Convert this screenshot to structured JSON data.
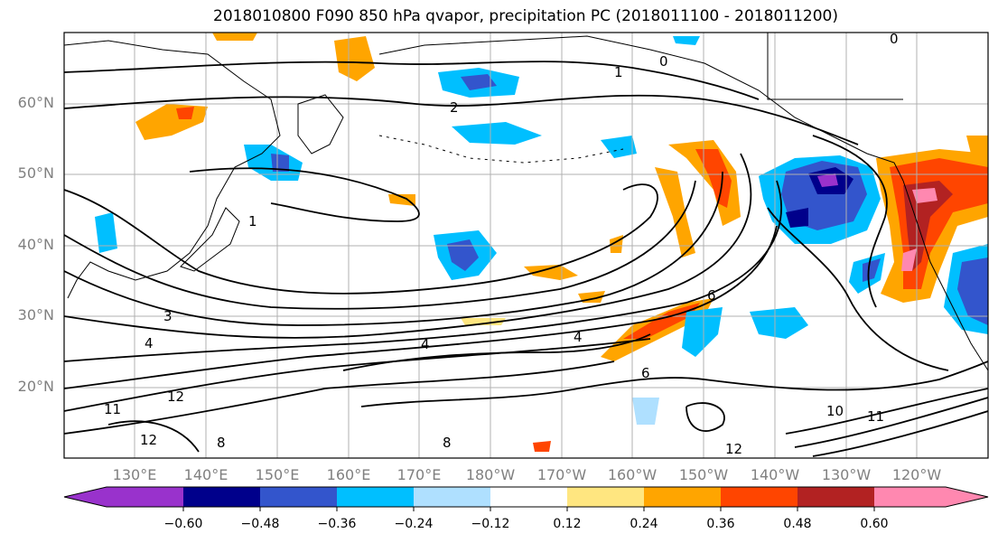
{
  "title": "2018010800 F090 850 hPa qvapor, precipitation PC (2018011100 - 2018011200)",
  "map": {
    "lat_labels": [
      "60°N",
      "50°N",
      "40°N",
      "30°N",
      "20°N"
    ],
    "lon_labels": [
      "130°E",
      "140°E",
      "150°E",
      "160°E",
      "170°E",
      "180°W",
      "170°W",
      "160°W",
      "150°W",
      "140°W",
      "130°W",
      "120°W"
    ],
    "contour_labels": [
      "0",
      "1",
      "2",
      "3",
      "4",
      "6",
      "8",
      "10",
      "11",
      "12"
    ]
  },
  "colorbar": {
    "tick_labels": [
      "−0.60",
      "−0.48",
      "−0.36",
      "−0.24",
      "−0.12",
      "0.12",
      "0.24",
      "0.36",
      "0.48",
      "0.60"
    ],
    "colors": [
      "#9932CC",
      "#00008B",
      "#3355CC",
      "#00BFFF",
      "#AFE0FF",
      "#FFFFFF",
      "#FFE680",
      "#FFA500",
      "#FF4500",
      "#B22222",
      "#FF88B0"
    ]
  }
}
